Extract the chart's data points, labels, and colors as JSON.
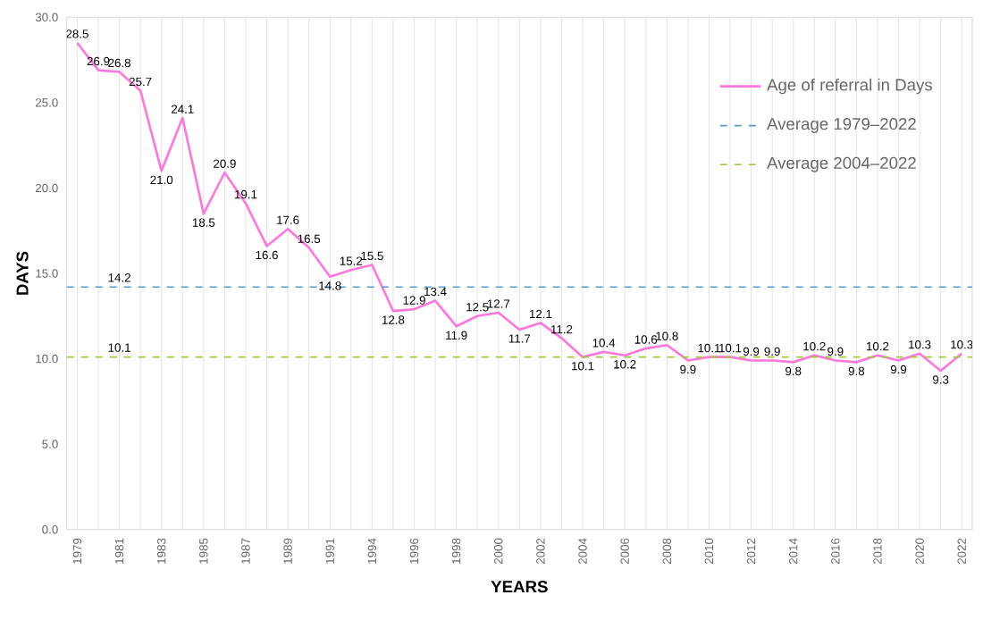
{
  "chart_data": {
    "type": "line",
    "xlabel": "YEARS",
    "ylabel": "DAYS",
    "categories": [
      "1979",
      null,
      "1981",
      null,
      "1983",
      null,
      "1985",
      null,
      "1987",
      null,
      "1989",
      null,
      "1991",
      null,
      "1994",
      null,
      "1996",
      null,
      "1998",
      null,
      "2000",
      null,
      "2002",
      null,
      "2004",
      null,
      "2006",
      null,
      "2008",
      null,
      "2010",
      null,
      "2012",
      null,
      "2014",
      null,
      "2016",
      null,
      "2018",
      null,
      "2020",
      null,
      "2022"
    ],
    "series": [
      {
        "name": "Age of referral in Days",
        "color": "#ff77dd",
        "values": [
          28.5,
          26.9,
          26.8,
          25.7,
          21.0,
          24.1,
          18.5,
          20.9,
          19.1,
          16.6,
          17.6,
          16.5,
          14.8,
          15.2,
          15.5,
          12.8,
          12.9,
          13.4,
          11.9,
          12.5,
          12.7,
          11.7,
          12.1,
          11.2,
          10.1,
          10.4,
          10.2,
          10.6,
          10.8,
          9.9,
          10.1,
          10.1,
          9.9,
          9.9,
          9.8,
          10.2,
          9.9,
          9.8,
          10.2,
          9.9,
          10.3,
          9.3,
          10.3
        ]
      }
    ],
    "ref_lines": [
      {
        "axis": "y",
        "value": 14.2,
        "label": "Average 1979–2022",
        "color": "#5b9bd5",
        "line_style": "dashed"
      },
      {
        "axis": "y",
        "value": 10.1,
        "label": "Average 2004–2022",
        "color": "#9acd32",
        "line_style": "dashed"
      }
    ],
    "annotations": [
      {
        "text": "14.2",
        "x": "1981",
        "y": 14.2
      },
      {
        "text": "10.1",
        "x": "1981",
        "y": 10.1
      }
    ],
    "ylim": [
      0,
      30
    ],
    "yticks": [
      {
        "value": 0,
        "label": "0.0"
      },
      {
        "value": 5,
        "label": "5.0"
      },
      {
        "value": 10,
        "label": "10.0"
      },
      {
        "value": 15,
        "label": "15.0"
      },
      {
        "value": 20,
        "label": "20.0"
      },
      {
        "value": 25,
        "label": "25.0"
      },
      {
        "value": 30,
        "label": "30.0"
      }
    ],
    "value_labels": [
      "28.5",
      "26.9",
      "26.8",
      "25.7",
      "21.0",
      "24.1",
      "18.5",
      "20.9",
      "19.1",
      "16.6",
      "17.6",
      "16.5",
      "14.8",
      "15.2",
      "15.5",
      "12.8",
      "12.9",
      "13.4",
      "11.9",
      "12.5",
      "12.7",
      "11.7",
      "12.1",
      "11.2",
      "10.1",
      "10.4",
      "10.2",
      "10.6",
      "10.8",
      "9.9",
      "10.1",
      "10.1",
      "9.9",
      "9.9",
      "9.8",
      "10.2",
      "9.9",
      "9.8",
      "10.2",
      "9.9",
      "10.3",
      "9.3",
      "10.3"
    ],
    "grid": "x",
    "legend": "top right",
    "marker": "none",
    "line_style": "solid"
  }
}
